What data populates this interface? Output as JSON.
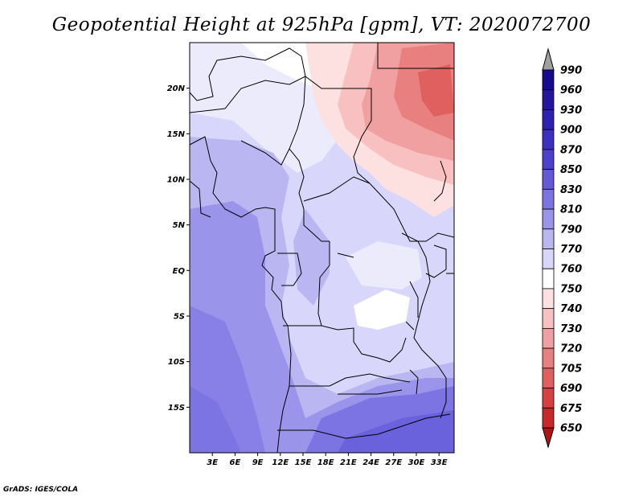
{
  "title": "Geopotential Height at 925hPa [gpm], VT: 2020072700",
  "credit": "GrADS: IGES/COLA",
  "chart_data": {
    "type": "heatmap",
    "title": "Geopotential Height at 925hPa [gpm], VT: 2020072700",
    "variable": "Geopotential Height",
    "level": "925hPa",
    "units": "gpm",
    "valid_time": "2020072700",
    "lon_range": [
      0,
      35
    ],
    "lat_range": [
      -20,
      25
    ],
    "x_ticks": [
      "3E",
      "6E",
      "9E",
      "12E",
      "15E",
      "18E",
      "21E",
      "24E",
      "27E",
      "30E",
      "33E"
    ],
    "x_tick_values": [
      3,
      6,
      9,
      12,
      15,
      18,
      21,
      24,
      27,
      30,
      33
    ],
    "y_ticks": [
      "20N",
      "15N",
      "10N",
      "5N",
      "EQ",
      "5S",
      "10S",
      "15S"
    ],
    "y_tick_values": [
      20,
      15,
      10,
      5,
      0,
      -5,
      -10,
      -15
    ],
    "colorbar": {
      "levels": [
        "990",
        "960",
        "930",
        "900",
        "870",
        "850",
        "830",
        "810",
        "790",
        "770",
        "760",
        "750",
        "740",
        "730",
        "720",
        "705",
        "690",
        "675",
        "650"
      ],
      "colors": [
        "#180a8c",
        "#2414a0",
        "#3020b0",
        "#3c30c0",
        "#4c40cc",
        "#6258d8",
        "#7c74e2",
        "#9a94ea",
        "#bab6f2",
        "#d8d6fa",
        "#ffffff",
        "#fde0e0",
        "#f8c0c0",
        "#f0a0a0",
        "#e88080",
        "#e06060",
        "#d84040",
        "#c82828",
        "#b01414"
      ],
      "extends": "both"
    }
  }
}
